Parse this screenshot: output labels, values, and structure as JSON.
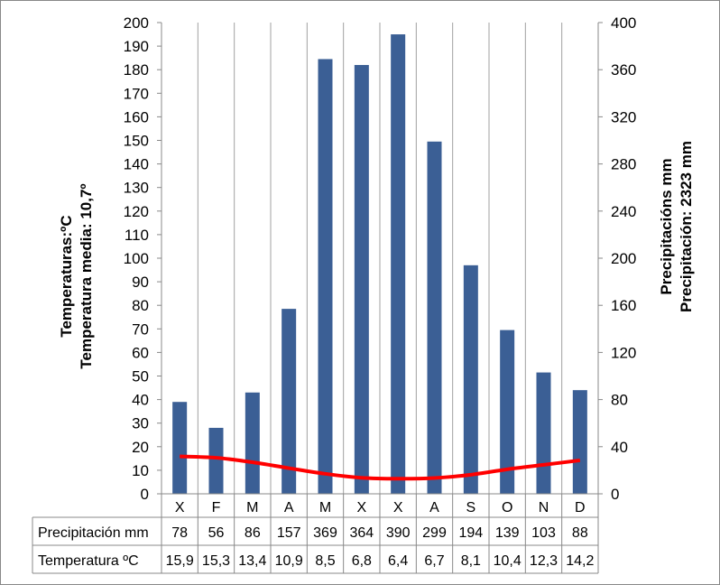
{
  "chart_data": {
    "type": "bar+line",
    "categories": [
      "X",
      "F",
      "M",
      "A",
      "M",
      "X",
      "X",
      "A",
      "S",
      "O",
      "N",
      "D"
    ],
    "series": [
      {
        "name": "Precipitación mm",
        "type": "bar",
        "axis": "right",
        "color": "#3b5f95",
        "values": [
          78,
          56,
          86,
          157,
          369,
          364,
          390,
          299,
          194,
          139,
          103,
          88
        ]
      },
      {
        "name": "Temperatura ºC",
        "type": "line",
        "axis": "left",
        "color": "#ff0000",
        "values": [
          15.9,
          15.3,
          13.4,
          10.9,
          8.5,
          6.8,
          6.4,
          6.7,
          8.1,
          10.4,
          12.3,
          14.2
        ]
      }
    ],
    "table_values": {
      "precip": [
        "78",
        "56",
        "86",
        "157",
        "369",
        "364",
        "390",
        "299",
        "194",
        "139",
        "103",
        "88"
      ],
      "temp": [
        "15,9",
        "15,3",
        "13,4",
        "10,9",
        "8,5",
        "6,8",
        "6,4",
        "6,7",
        "8,1",
        "10,4",
        "12,3",
        "14,2"
      ]
    },
    "ylabel_left": [
      "Temperaturas:ºC",
      "Temperatura media: 10,7º"
    ],
    "ylabel_right": [
      "Precipitacións mm",
      "Precipitación: 2323 mm"
    ],
    "ylim_left": [
      0,
      200
    ],
    "ytick_step_left": 10,
    "ylim_right": [
      0,
      400
    ],
    "ytick_step_right": 40,
    "grid": "vertical",
    "data_table": true
  }
}
